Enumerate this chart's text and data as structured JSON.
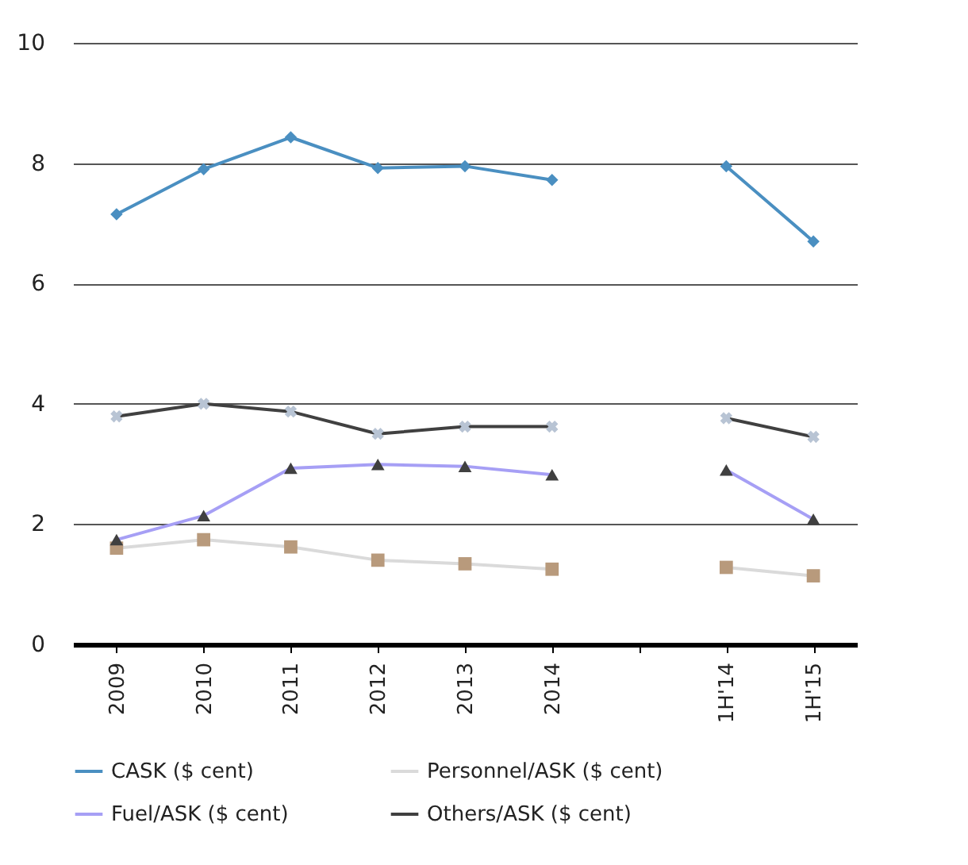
{
  "chart_data": {
    "type": "line",
    "categories": [
      "2009",
      "2010",
      "2011",
      "2012",
      "2013",
      "2014",
      null,
      "1H'14",
      "1H'15"
    ],
    "ylim": [
      0,
      10
    ],
    "yticks": [
      0,
      2,
      4,
      6,
      8,
      10
    ],
    "grid": "y",
    "legend": "bottom",
    "series": [
      {
        "name": "CASK ($ cent)",
        "color": "#4a8fc1",
        "marker": "diamond",
        "colors": [
          "#4a8fc1",
          "#4a8fc1",
          "#4a8fc1",
          "#4a8fc1",
          "#4a8fc1",
          "#4a8fc1",
          null,
          "#4a8fc1",
          "#4a8fc1"
        ],
        "values": [
          7.15,
          7.9,
          8.43,
          7.92,
          7.95,
          7.72,
          null,
          7.95,
          6.7
        ]
      },
      {
        "name": "Personnel/ASK ($ cent)",
        "color": "#dadada",
        "marker": "square",
        "colors": [
          "#b89a7c",
          "#b89a7c",
          "#b89a7c",
          "#b89a7c",
          "#b89a7c",
          "#b89a7c",
          null,
          "#b89a7c",
          "#b89a7c"
        ],
        "values": [
          1.6,
          1.74,
          1.62,
          1.4,
          1.34,
          1.25,
          null,
          1.28,
          1.14
        ]
      },
      {
        "name": "Fuel/ASK ($ cent)",
        "color": "#a69ff5",
        "marker": "triangle",
        "colors": [
          "#404040",
          "#404040",
          "#404040",
          "#404040",
          "#404040",
          "#404040",
          null,
          "#404040",
          "#404040"
        ],
        "values": [
          1.74,
          2.14,
          2.93,
          2.99,
          2.96,
          2.82,
          null,
          2.9,
          2.08
        ]
      },
      {
        "name": "Others/ASK ($ cent)",
        "color": "#404040",
        "marker": "cross",
        "colors": [
          "#b8c4d4",
          "#b8c4d4",
          "#b8c4d4",
          "#b8c4d4",
          "#b8c4d4",
          "#b8c4d4",
          null,
          "#b8c4d4",
          "#b8c4d4"
        ],
        "values": [
          3.79,
          4.0,
          3.87,
          3.5,
          3.62,
          3.62,
          null,
          3.76,
          3.45
        ]
      }
    ]
  }
}
